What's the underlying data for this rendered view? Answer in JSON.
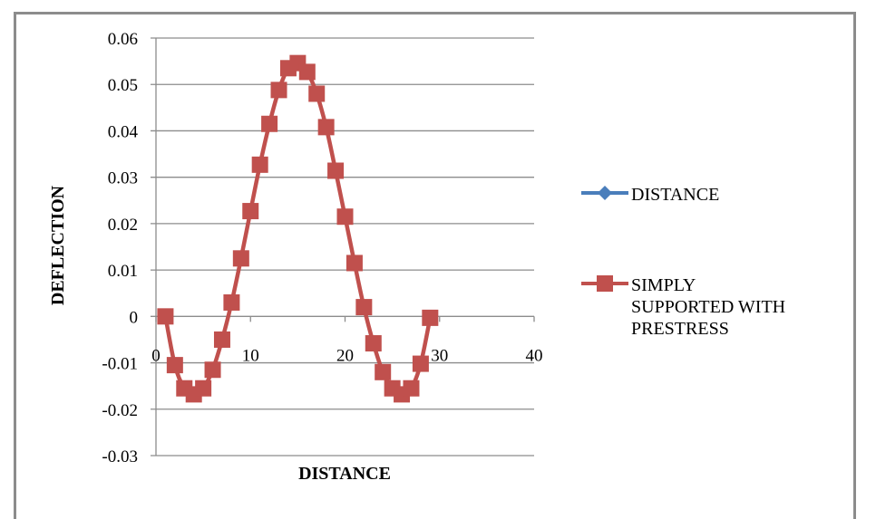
{
  "chart_data": {
    "type": "line",
    "title": "",
    "xlabel": "DISTANCE",
    "ylabel": "DEFLECTION",
    "xlim": [
      0,
      40
    ],
    "ylim": [
      -0.03,
      0.06
    ],
    "x_ticks": [
      "0",
      "10",
      "20",
      "30",
      "40"
    ],
    "y_ticks": [
      "0.06",
      "0.05",
      "0.04",
      "0.03",
      "0.02",
      "0.01",
      "0",
      "-0.01",
      "-0.02",
      "-0.03"
    ],
    "grid": "horizontal",
    "legend_position": "right",
    "legend": [
      "DISTANCE",
      "SIMPLY SUPPORTED WITH PRESTRESS"
    ],
    "series": [
      {
        "name": "DISTANCE",
        "color": "#4a7ebb",
        "marker": "diamond",
        "x": [],
        "values": []
      },
      {
        "name": "SIMPLY SUPPORTED WITH PRESTRESS",
        "color": "#c0504d",
        "marker": "square",
        "x": [
          1,
          2,
          3,
          4,
          5,
          6,
          7,
          8,
          9,
          10,
          11,
          12,
          13,
          14,
          15,
          16,
          17,
          18,
          19,
          20,
          21,
          22,
          23,
          24,
          25,
          26,
          27,
          28,
          29
        ],
        "values": [
          0,
          -0.0105,
          -0.0155,
          -0.0168,
          -0.0155,
          -0.0115,
          -0.005,
          0.003,
          0.0125,
          0.0227,
          0.0327,
          0.0415,
          0.0488,
          0.0535,
          0.0546,
          0.0527,
          0.048,
          0.0408,
          0.0314,
          0.0215,
          0.0115,
          0.002,
          -0.0058,
          -0.012,
          -0.0155,
          -0.0168,
          -0.0155,
          -0.0102,
          -0.0003
        ]
      }
    ]
  },
  "legend": {
    "items": [
      {
        "label_lines": [
          "DISTANCE"
        ],
        "color": "#4a7ebb",
        "marker": "diamond-icon"
      },
      {
        "label_lines": [
          "SIMPLY",
          "SUPPORTED WITH",
          "PRESTRESS"
        ],
        "color": "#c0504d",
        "marker": "square-icon"
      }
    ]
  },
  "colors": {
    "frame": "#8c8c8c",
    "grid": "#8c8c8c",
    "axis": "#8c8c8c"
  }
}
